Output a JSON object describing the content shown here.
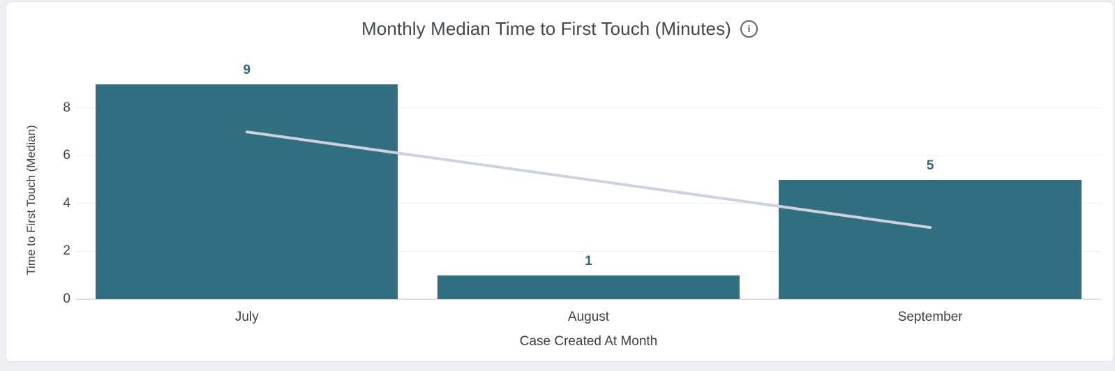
{
  "card": {
    "title": "Monthly Median Time to First Touch (Minutes)",
    "info_icon_glyph": "i"
  },
  "chart_data": {
    "type": "bar",
    "title": "Monthly Median Time to First Touch (Minutes)",
    "categories": [
      "July",
      "August",
      "September"
    ],
    "series": [
      {
        "name": "Time to First Touch (Median)",
        "type": "bar",
        "values": [
          9,
          1,
          5
        ],
        "color": "#306e80",
        "data_labels": true
      },
      {
        "name": "trend",
        "type": "line",
        "values": [
          7,
          5,
          3
        ],
        "color": "#cdd3de"
      }
    ],
    "xlabel": "Case Created At Month",
    "ylabel": "Time to First Touch (Median)",
    "yticks": [
      0,
      2,
      4,
      6,
      8
    ],
    "ylim": [
      0,
      10.3
    ],
    "grid": true,
    "legend_position": "none"
  },
  "colors": {
    "bar": "#306e80",
    "value_label": "#2a6879",
    "trend_line": "#cdd3de",
    "gridline": "#efefef",
    "axis_baseline": "#dbe1ed",
    "axis_text": "#3c4043",
    "title_text": "#42474c",
    "icon": "#5f6368",
    "card_border": "#e1e4e9",
    "page_background": "#edeff2"
  }
}
